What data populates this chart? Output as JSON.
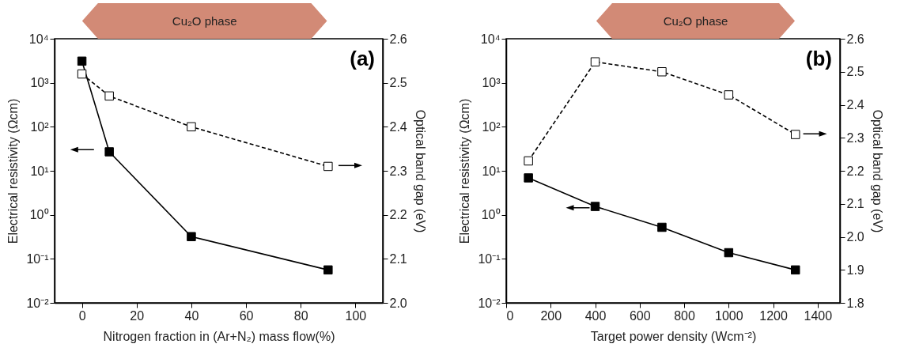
{
  "chart_data": [
    {
      "type": "line",
      "xlabel": "Nitrogen fraction in (Ar+N₂) mass flow(%)",
      "ylabel": "Electrical resistivity (Ωcm)",
      "y2label": "Optical band gap (eV)",
      "annotations": [
        "Cu₂O phase",
        "(a)"
      ],
      "x": [
        0,
        10,
        40,
        90
      ],
      "series": [
        {
          "color": "#000000",
          "marker": "square",
          "line_style": "solid",
          "values": [
            3100,
            27,
            0.32,
            0.056
          ]
        },
        {
          "color": "#000000",
          "marker": "square",
          "line_style": "dashed",
          "axis": "y2",
          "values": [
            2.52,
            2.47,
            2.4,
            2.31
          ]
        }
      ],
      "xlim": [
        -10,
        110
      ],
      "xticks": [
        0,
        20,
        40,
        60,
        80,
        100
      ],
      "ylim": [
        0.01,
        10000
      ],
      "yticks": [
        {
          "value": 0.01,
          "label": "10⁻²"
        },
        {
          "value": 0.1,
          "label": "10⁻¹"
        },
        {
          "value": 1,
          "label": "10⁰"
        },
        {
          "value": 10,
          "label": "10¹"
        },
        {
          "value": 100,
          "label": "10²"
        },
        {
          "value": 1000,
          "label": "10³"
        },
        {
          "value": 10000,
          "label": "10⁴"
        }
      ],
      "y2lim": [
        2.0,
        2.6
      ],
      "y2ticks": [
        {
          "value": 2.0,
          "label": "2.0"
        },
        2.1,
        2.2,
        2.3,
        2.4,
        2.5,
        2.6
      ],
      "log": "y",
      "grid": false
    },
    {
      "type": "line",
      "xlabel": "Target power density (Wcm⁻²)",
      "ylabel": "Electrical resistivity (Ωcm)",
      "y2label": "Optical band gap (eV)",
      "annotations": [
        "Cu₂O phase",
        "(b)"
      ],
      "x": [
        100,
        400,
        700,
        1000,
        1300
      ],
      "series": [
        {
          "color": "#000000",
          "marker": "square",
          "line_style": "solid",
          "values": [
            6.9,
            1.55,
            0.52,
            0.138,
            0.056
          ]
        },
        {
          "color": "#000000",
          "marker": "square",
          "line_style": "dashed",
          "axis": "y2",
          "values": [
            2.23,
            2.53,
            2.5,
            2.43,
            2.31
          ]
        }
      ],
      "xlim": [
        0,
        1500
      ],
      "xticks": [
        0,
        200,
        400,
        600,
        800,
        1000,
        1200,
        1400
      ],
      "ylim": [
        0.01,
        10000
      ],
      "yticks": [
        {
          "value": 0.01,
          "label": "10⁻²"
        },
        {
          "value": 0.1,
          "label": "10⁻¹"
        },
        {
          "value": 1,
          "label": "10⁰"
        },
        {
          "value": 10,
          "label": "10¹"
        },
        {
          "value": 100,
          "label": "10²"
        },
        {
          "value": 1000,
          "label": "10³"
        },
        {
          "value": 10000,
          "label": "10⁴"
        }
      ],
      "y2lim": [
        1.8,
        2.6
      ],
      "y2ticks": [
        1.8,
        1.9,
        {
          "value": 2.0,
          "label": "2.0"
        },
        2.1,
        2.2,
        2.3,
        2.4,
        2.5,
        2.6
      ],
      "log": "y",
      "grid": false
    }
  ]
}
